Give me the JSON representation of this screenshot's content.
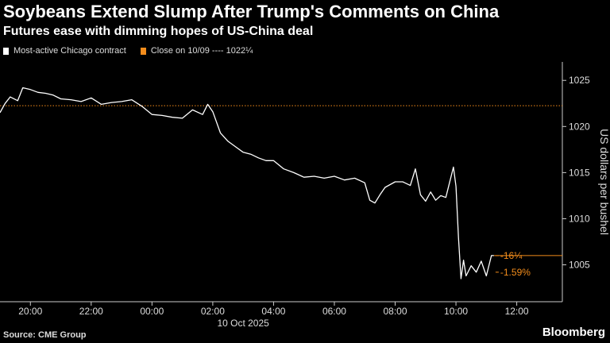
{
  "chart_data": {
    "type": "line",
    "title": "Soybeans Extend Slump After Trump's Comments on China",
    "subtitle": "Futures ease with dimming hopes of US-China deal",
    "ylabel": "US dollars per bushel",
    "ylim": [
      1001,
      1027
    ],
    "yticks": [
      1005,
      1010,
      1015,
      1020,
      1025
    ],
    "xlim": [
      "2025-10-09 19:00",
      "2025-10-10 13:30"
    ],
    "xticks": [
      {
        "t": "2025-10-09 20:00",
        "label": "20:00"
      },
      {
        "t": "2025-10-09 22:00",
        "label": "22:00"
      },
      {
        "t": "2025-10-10 00:00",
        "label": "00:00"
      },
      {
        "t": "2025-10-10 02:00",
        "label": "02:00"
      },
      {
        "t": "2025-10-10 04:00",
        "label": "04:00"
      },
      {
        "t": "2025-10-10 06:00",
        "label": "06:00"
      },
      {
        "t": "2025-10-10 08:00",
        "label": "08:00"
      },
      {
        "t": "2025-10-10 10:00",
        "label": "10:00"
      },
      {
        "t": "2025-10-10 12:00",
        "label": "12:00"
      }
    ],
    "date_label": "10 Oct 2025",
    "legend": {
      "series_label": "Most-active Chicago contract",
      "close_label": "Close on 10/09 ---- 1022¼"
    },
    "reference_line": {
      "name": "Close on 10/09",
      "value": 1022.25
    },
    "series": [
      {
        "name": "Most-active Chicago contract",
        "x": [
          "2025-10-09 19:00",
          "2025-10-09 19:10",
          "2025-10-09 19:20",
          "2025-10-09 19:35",
          "2025-10-09 19:45",
          "2025-10-09 20:00",
          "2025-10-09 20:15",
          "2025-10-09 20:30",
          "2025-10-09 20:45",
          "2025-10-09 21:00",
          "2025-10-09 21:20",
          "2025-10-09 21:40",
          "2025-10-09 22:00",
          "2025-10-09 22:20",
          "2025-10-09 22:40",
          "2025-10-09 23:00",
          "2025-10-09 23:20",
          "2025-10-09 23:40",
          "2025-10-10 00:00",
          "2025-10-10 00:20",
          "2025-10-10 00:40",
          "2025-10-10 01:00",
          "2025-10-10 01:20",
          "2025-10-10 01:40",
          "2025-10-10 01:50",
          "2025-10-10 02:00",
          "2025-10-10 02:15",
          "2025-10-10 02:30",
          "2025-10-10 02:45",
          "2025-10-10 03:00",
          "2025-10-10 03:15",
          "2025-10-10 03:30",
          "2025-10-10 03:45",
          "2025-10-10 04:00",
          "2025-10-10 04:20",
          "2025-10-10 04:40",
          "2025-10-10 05:00",
          "2025-10-10 05:20",
          "2025-10-10 05:40",
          "2025-10-10 06:00",
          "2025-10-10 06:20",
          "2025-10-10 06:40",
          "2025-10-10 07:00",
          "2025-10-10 07:10",
          "2025-10-10 07:20",
          "2025-10-10 07:30",
          "2025-10-10 07:40",
          "2025-10-10 08:00",
          "2025-10-10 08:15",
          "2025-10-10 08:30",
          "2025-10-10 08:40",
          "2025-10-10 08:50",
          "2025-10-10 09:00",
          "2025-10-10 09:10",
          "2025-10-10 09:20",
          "2025-10-10 09:30",
          "2025-10-10 09:40",
          "2025-10-10 09:50",
          "2025-10-10 09:55",
          "2025-10-10 10:00",
          "2025-10-10 10:05",
          "2025-10-10 10:10",
          "2025-10-10 10:15",
          "2025-10-10 10:20",
          "2025-10-10 10:30",
          "2025-10-10 10:40",
          "2025-10-10 10:50",
          "2025-10-10 11:00",
          "2025-10-10 11:10",
          "2025-10-10 11:15"
        ],
        "values": [
          1021.5,
          1022.5,
          1023.2,
          1022.8,
          1024.2,
          1024.0,
          1023.7,
          1023.6,
          1023.4,
          1023.0,
          1022.9,
          1022.7,
          1023.1,
          1022.4,
          1022.6,
          1022.7,
          1022.9,
          1022.2,
          1021.3,
          1021.2,
          1021.0,
          1020.9,
          1021.8,
          1021.3,
          1022.4,
          1021.6,
          1019.3,
          1018.4,
          1017.8,
          1017.2,
          1017.0,
          1016.6,
          1016.3,
          1016.3,
          1015.4,
          1015.0,
          1014.5,
          1014.6,
          1014.4,
          1014.6,
          1014.2,
          1014.4,
          1013.9,
          1012.0,
          1011.7,
          1012.6,
          1013.4,
          1014.0,
          1014.0,
          1013.6,
          1015.4,
          1012.6,
          1011.9,
          1012.9,
          1012.0,
          1012.5,
          1012.3,
          1014.5,
          1015.6,
          1013.5,
          1008.0,
          1003.5,
          1005.5,
          1003.8,
          1004.9,
          1004.2,
          1005.4,
          1003.8,
          1006.0,
          1006.0
        ]
      }
    ],
    "annotations": [
      {
        "label": "-16¼",
        "value": 1006.0
      },
      {
        "label": "-1.59%",
        "value": 1004.2
      }
    ],
    "colors": {
      "series": "#ffffff",
      "reference": "#f28c1b",
      "axis": "#cccccc"
    },
    "grid": false,
    "legend_position": "top-left"
  },
  "source": "Source: CME Group",
  "brand": "Bloomberg"
}
